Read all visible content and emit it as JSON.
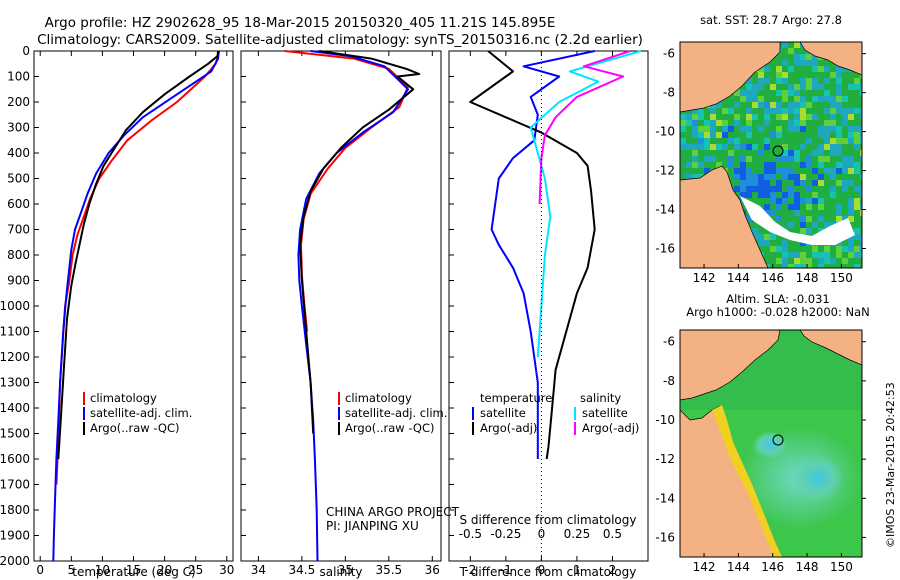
{
  "title_line1": "Argo profile: HZ 2902628_95 18-Mar-2015 20150320_405 11.21S 145.895E",
  "title_line2": "Climatology: CARS2009. Satellite-adjusted climatology: synTS_20150316.nc (2.2d earlier)",
  "footer": {
    "project": "CHINA ARGO PROJECT",
    "pi": "PI: JIANPING XU"
  },
  "colors": {
    "clim": "#ff0000",
    "sat": "#0000ff",
    "argo": "#000000",
    "sal_sat": "#00e5ff",
    "sal_argo": "#ff00ff",
    "land": "#f4b183",
    "missing": "#ffffff"
  },
  "chart_data": [
    {
      "type": "line",
      "name": "temperature-profile",
      "xlabel": "temperature (deg C)",
      "ylabel": "",
      "xlim": [
        -1,
        31
      ],
      "ylim": [
        2000,
        0
      ],
      "xticks": [
        "0",
        "5",
        "10",
        "15",
        "20",
        "25",
        "30"
      ],
      "xtick_values": [
        0,
        5,
        10,
        15,
        20,
        25,
        30
      ],
      "yticks": [
        "0",
        "100",
        "200",
        "300",
        "400",
        "500",
        "600",
        "700",
        "800",
        "900",
        "1000",
        "1100",
        "1200",
        "1300",
        "1400",
        "1500",
        "1600",
        "1700",
        "1800",
        "1900",
        "2000"
      ],
      "ytick_values": [
        0,
        100,
        200,
        300,
        400,
        500,
        600,
        700,
        800,
        900,
        1000,
        1100,
        1200,
        1300,
        1400,
        1500,
        1600,
        1700,
        1800,
        1900,
        2000
      ],
      "legend": [
        "climatology",
        "satellite-adj. clim.",
        "Argo(..raw -QC)"
      ],
      "series": [
        {
          "name": "climatology",
          "color_key": "clim",
          "x": [
            28.8,
            28.2,
            26.5,
            22,
            18,
            14,
            11.5,
            9.5,
            8,
            7,
            6,
            5.2,
            4.7,
            4,
            3.6,
            3.2,
            3,
            2.8,
            2.6
          ],
          "y": [
            0,
            50,
            100,
            200,
            270,
            350,
            430,
            500,
            580,
            650,
            720,
            800,
            900,
            1000,
            1150,
            1300,
            1450,
            1600,
            1700
          ]
        },
        {
          "name": "satellite-adj. clim.",
          "color_key": "sat",
          "x": [
            28.7,
            28.6,
            27.5,
            22,
            16.5,
            13.5,
            11,
            9,
            7.6,
            6.6,
            5.6,
            5,
            4.6,
            4.2,
            3.7,
            3.2,
            2.9,
            2.6,
            2.4,
            2.2,
            2.1
          ],
          "y": [
            0,
            30,
            80,
            170,
            260,
            330,
            400,
            480,
            560,
            630,
            700,
            780,
            870,
            960,
            1100,
            1300,
            1450,
            1600,
            1750,
            1900,
            2000
          ]
        },
        {
          "name": "Argo(..raw -QC)",
          "color_key": "argo",
          "x": [
            28.6,
            28.5,
            27,
            24,
            20,
            16.5,
            13.8,
            12,
            10.2,
            9,
            7.9,
            7,
            6.4,
            5.7,
            5,
            4.3,
            3.8,
            3.3,
            2.9
          ],
          "y": [
            0,
            20,
            50,
            100,
            170,
            240,
            310,
            380,
            450,
            520,
            600,
            680,
            750,
            830,
            920,
            1050,
            1250,
            1450,
            1600
          ]
        }
      ]
    },
    {
      "type": "line",
      "name": "salinity-profile",
      "xlabel": "salinity",
      "xlim": [
        33.8,
        36.1
      ],
      "ylim": [
        2000,
        0
      ],
      "xticks": [
        "34",
        "34.5",
        "35",
        "35.5",
        "36"
      ],
      "xtick_values": [
        34,
        34.5,
        35,
        35.5,
        36
      ],
      "legend": [
        "climatology",
        "satellite-adj. clim.",
        "Argo(..raw -QC)"
      ],
      "series": [
        {
          "name": "climatology",
          "color_key": "clim",
          "x": [
            34.3,
            35.1,
            35.5,
            35.72,
            35.62,
            35.3,
            35,
            34.8,
            34.6,
            34.52,
            34.49,
            34.5,
            34.53,
            34.56
          ],
          "y": [
            0,
            30,
            70,
            140,
            220,
            300,
            380,
            460,
            560,
            660,
            760,
            880,
            1000,
            1100
          ]
        },
        {
          "name": "satellite-adj. clim.",
          "color_key": "sat",
          "x": [
            34.6,
            35.05,
            35.45,
            35.72,
            35.55,
            35.2,
            34.9,
            34.7,
            34.55,
            34.48,
            34.46,
            34.47,
            34.5,
            34.55,
            34.6,
            34.63,
            34.65,
            34.67,
            34.68
          ],
          "y": [
            0,
            20,
            60,
            150,
            240,
            320,
            400,
            480,
            580,
            700,
            800,
            900,
            1000,
            1150,
            1300,
            1450,
            1600,
            1800,
            2000
          ]
        },
        {
          "name": "Argo(..raw -QC)",
          "color_key": "argo",
          "x": [
            34.7,
            35.3,
            35.7,
            35.85,
            35.6,
            35.78,
            35.5,
            35.2,
            34.95,
            34.75,
            34.6,
            34.52,
            34.48,
            34.5,
            34.55,
            34.6,
            34.63
          ],
          "y": [
            0,
            30,
            70,
            90,
            100,
            150,
            230,
            300,
            380,
            460,
            550,
            650,
            760,
            900,
            1100,
            1300,
            1500
          ]
        }
      ]
    },
    {
      "type": "line",
      "name": "difference-profile",
      "xlabel": "T difference from climatology",
      "xlabel2": "S difference from climatology",
      "xlim": [
        -2.6,
        3
      ],
      "ylim": [
        2000,
        0
      ],
      "xticks": [
        "-2",
        "-1",
        "0",
        "1",
        "2"
      ],
      "xtick_values": [
        -2,
        -1,
        0,
        1,
        2
      ],
      "xticks2": [
        "-0.5",
        "-0.25",
        "0",
        "0.25",
        "0.5"
      ],
      "legend_title_left": "temperature",
      "legend_title_right": "salinity",
      "legend_left": [
        "satellite",
        "Argo(-adj)"
      ],
      "legend_right": [
        "satellite",
        "Argo(-adj)"
      ],
      "series": [
        {
          "name": "T satellite",
          "color_key": "sat",
          "x": [
            1.5,
            -0.5,
            0.5,
            -0.3,
            -0.1,
            -0.2,
            -0.8,
            -1.2,
            -1.3,
            -1.4,
            -1.2,
            -0.8,
            -0.5,
            -0.3,
            -0.1,
            -0.1
          ],
          "y": [
            0,
            60,
            100,
            180,
            250,
            350,
            420,
            500,
            600,
            700,
            760,
            850,
            950,
            1100,
            1300,
            1600
          ]
        },
        {
          "name": "T Argo(-adj)",
          "color_key": "argo",
          "x": [
            -1.5,
            -0.8,
            -2,
            -1,
            0,
            1,
            1.3,
            1.4,
            1.5,
            1.3,
            1.0,
            0.8,
            0.6,
            0.4,
            0.3,
            0.2,
            0.15
          ],
          "y": [
            0,
            80,
            200,
            260,
            320,
            400,
            450,
            550,
            700,
            850,
            950,
            1050,
            1150,
            1250,
            1400,
            1550,
            1600
          ]
        },
        {
          "name": "S satellite",
          "color_key": "sal_sat",
          "x": [
            2.8,
            0.8,
            1.6,
            0.5,
            -0.3,
            -0.1,
            0.1,
            0.25,
            0.1,
            0,
            -0.1
          ],
          "y": [
            0,
            80,
            120,
            200,
            300,
            400,
            500,
            650,
            800,
            1000,
            1200
          ]
        },
        {
          "name": "S Argo(-adj)",
          "color_key": "sal_argo",
          "x": [
            2.5,
            1.2,
            2.3,
            1.0,
            0.4,
            0.1,
            0,
            -0.05
          ],
          "y": [
            0,
            60,
            100,
            180,
            260,
            330,
            420,
            600
          ]
        }
      ]
    },
    {
      "type": "heatmap",
      "name": "sst-map",
      "title": "sat. SST: 28.7 Argo: 27.8",
      "xticks": [
        "142",
        "144",
        "146",
        "148",
        "150"
      ],
      "yticks": [
        "-6",
        "-8",
        "-10",
        "-12",
        "-14",
        "-16"
      ],
      "xtick_values": [
        142,
        144,
        146,
        148,
        150
      ],
      "ytick_values": [
        -6,
        -8,
        -10,
        -12,
        -14,
        -16
      ],
      "xlim": [
        140.6,
        151.2
      ],
      "ylim": [
        -17,
        -5.4
      ],
      "marker": {
        "lon": 145.9,
        "lat": -11.2
      }
    },
    {
      "type": "heatmap",
      "name": "sla-map",
      "title": "Altim. SLA: -0.031",
      "subtitle": "Argo h1000: -0.028 h2000: NaN",
      "side_label": "©IMOS 23-Mar-2015 20:42:53",
      "xticks": [
        "142",
        "144",
        "146",
        "148",
        "150"
      ],
      "yticks": [
        "-6",
        "-8",
        "-10",
        "-12",
        "-14",
        "-16"
      ],
      "xtick_values": [
        142,
        144,
        146,
        148,
        150
      ],
      "ytick_values": [
        -6,
        -8,
        -10,
        -12,
        -14,
        -16
      ],
      "xlim": [
        140.6,
        151.2
      ],
      "ylim": [
        -17,
        -5.4
      ],
      "marker": {
        "lon": 145.9,
        "lat": -11.2
      }
    }
  ]
}
